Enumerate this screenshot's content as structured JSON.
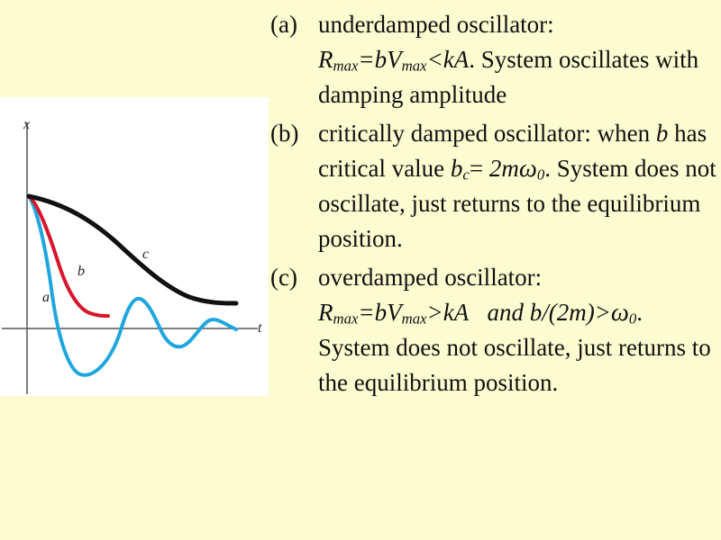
{
  "figure": {
    "x_axis_label": "t",
    "y_axis_label": "x",
    "curve_labels": {
      "a": "a",
      "b": "b",
      "c": "c"
    },
    "colors": {
      "a": "#1fa6df",
      "b": "#d8152a",
      "c": "#111111",
      "axes": "#555555"
    }
  },
  "items": [
    {
      "marker": "(a)",
      "p1": "underdamped oscillator:",
      "p2": "R",
      "p3": "max",
      "p4": "=bV",
      "p5": "max",
      "p6": "<kA",
      "p7": ". System oscillates with damping amplitude"
    },
    {
      "marker": "(b)",
      "p1": "critically damped oscillator: when ",
      "p2": "b",
      "p3": " has critical value ",
      "p4": "b",
      "p5": "c",
      "p6": "=",
      "p7": "2m",
      "p8": "ω",
      "p9": "0",
      "p10": ". System does not oscillate, just returns to the equilibrium position."
    },
    {
      "marker": "(c)",
      "p1": "overdamped oscillator:",
      "p2": "R",
      "p3": "max",
      "p4": "=bV",
      "p5": "max",
      "p6": ">kA",
      "p7": "and b/(2m)>",
      "p8": "ω",
      "p9": "0",
      "p10": ". System does not oscillate, just returns to the equilibrium position."
    }
  ]
}
